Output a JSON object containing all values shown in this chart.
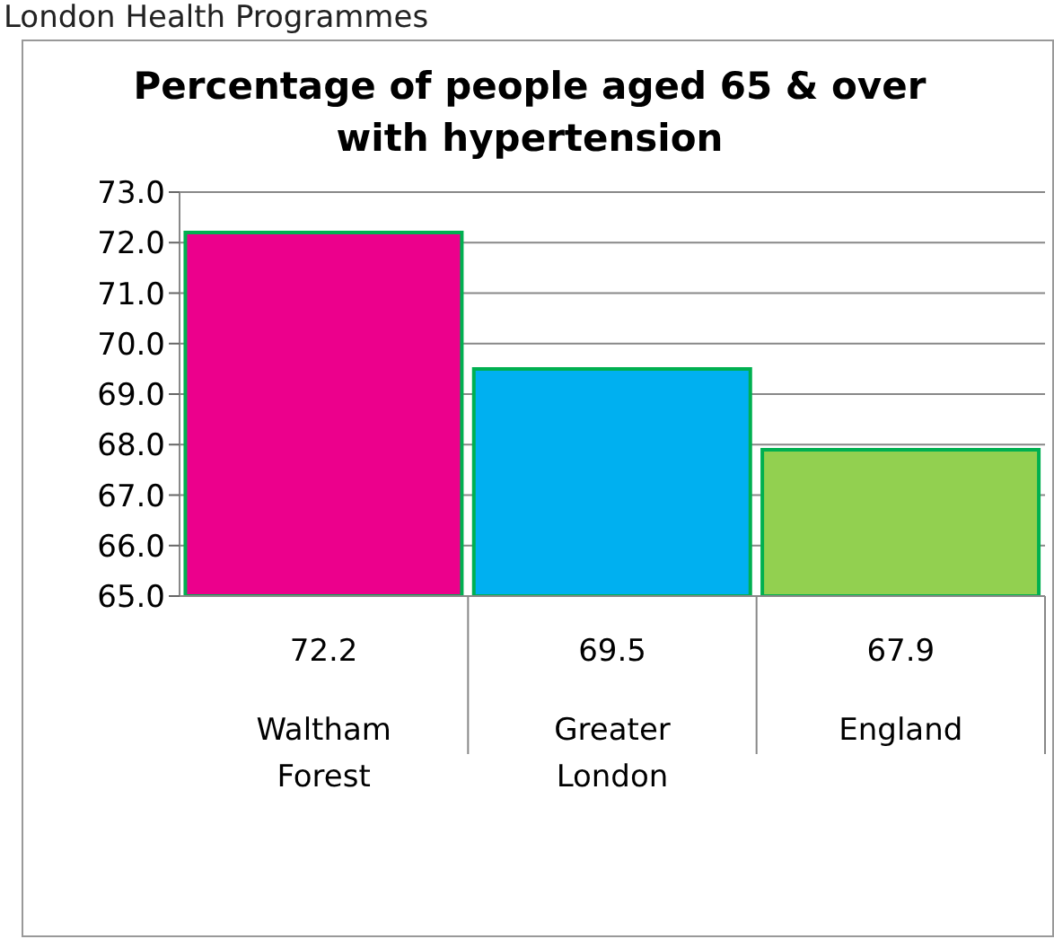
{
  "chart_data": {
    "type": "bar",
    "title": "Percentage of people aged 65 & over with hypertension",
    "annotations": [
      "London Health Programmes"
    ],
    "categories": [
      "Waltham Forest",
      "Greater London",
      "England"
    ],
    "values": [
      72.2,
      69.5,
      67.9
    ],
    "colors": [
      "#ec008c",
      "#00b0f0",
      "#92d050"
    ],
    "ylim": [
      65,
      73
    ],
    "yticks": [
      {
        "value": 65,
        "label": "65.0"
      },
      {
        "value": 66,
        "label": "66.0"
      },
      {
        "value": 67,
        "label": "67.0"
      },
      {
        "value": 68,
        "label": "68.0"
      },
      {
        "value": 69,
        "label": "69.0"
      },
      {
        "value": 70,
        "label": "70.0"
      },
      {
        "value": 71,
        "label": "71.0"
      },
      {
        "value": 72,
        "label": "72.0"
      },
      {
        "value": 73,
        "label": "73.0"
      }
    ],
    "grid": "y",
    "data_labels": true
  }
}
